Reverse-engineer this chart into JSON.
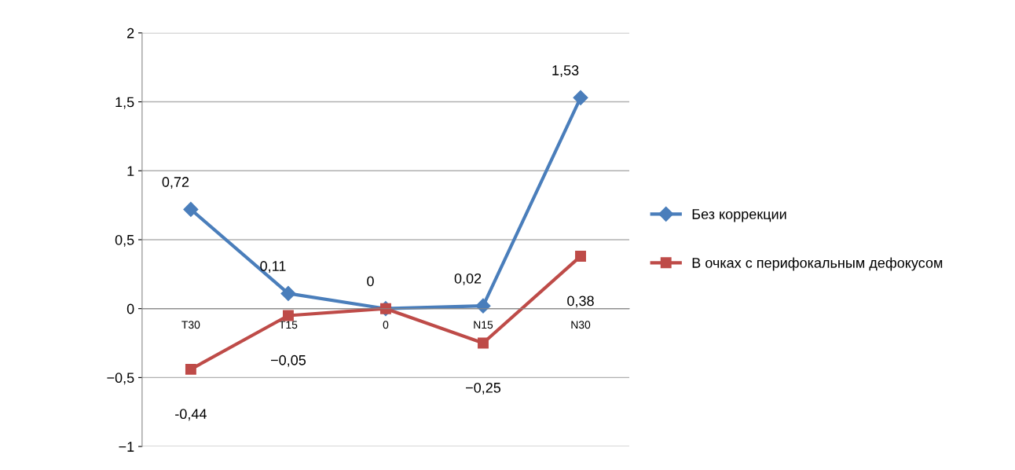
{
  "chart_data": {
    "type": "line",
    "categories": [
      "T30",
      "T15",
      "0",
      "N15",
      "N30"
    ],
    "series": [
      {
        "name": "Без коррекции",
        "color": "#4a7ebb",
        "marker": "diamond",
        "values": [
          0.72,
          0.11,
          0,
          0.02,
          1.53
        ],
        "value_labels": [
          "0,72",
          "0,11",
          "0",
          "0,02",
          "1,53"
        ]
      },
      {
        "name": "В очках с перифокальным дефокусом",
        "color": "#be4b48",
        "marker": "square",
        "values": [
          -0.44,
          -0.05,
          0,
          -0.25,
          0.38
        ],
        "value_labels": [
          "-0,44",
          "−0,05",
          null,
          "−0,25",
          "0,38"
        ]
      }
    ],
    "ylim": [
      -1,
      2
    ],
    "yticks": [
      {
        "value": -1,
        "label": "−1"
      },
      {
        "value": -0.5,
        "label": "−0,5"
      },
      0,
      {
        "value": 0.5,
        "label": "0,5"
      },
      1,
      {
        "value": 1.5,
        "label": "1,5"
      },
      2
    ],
    "grid": "y",
    "legend": "right"
  }
}
